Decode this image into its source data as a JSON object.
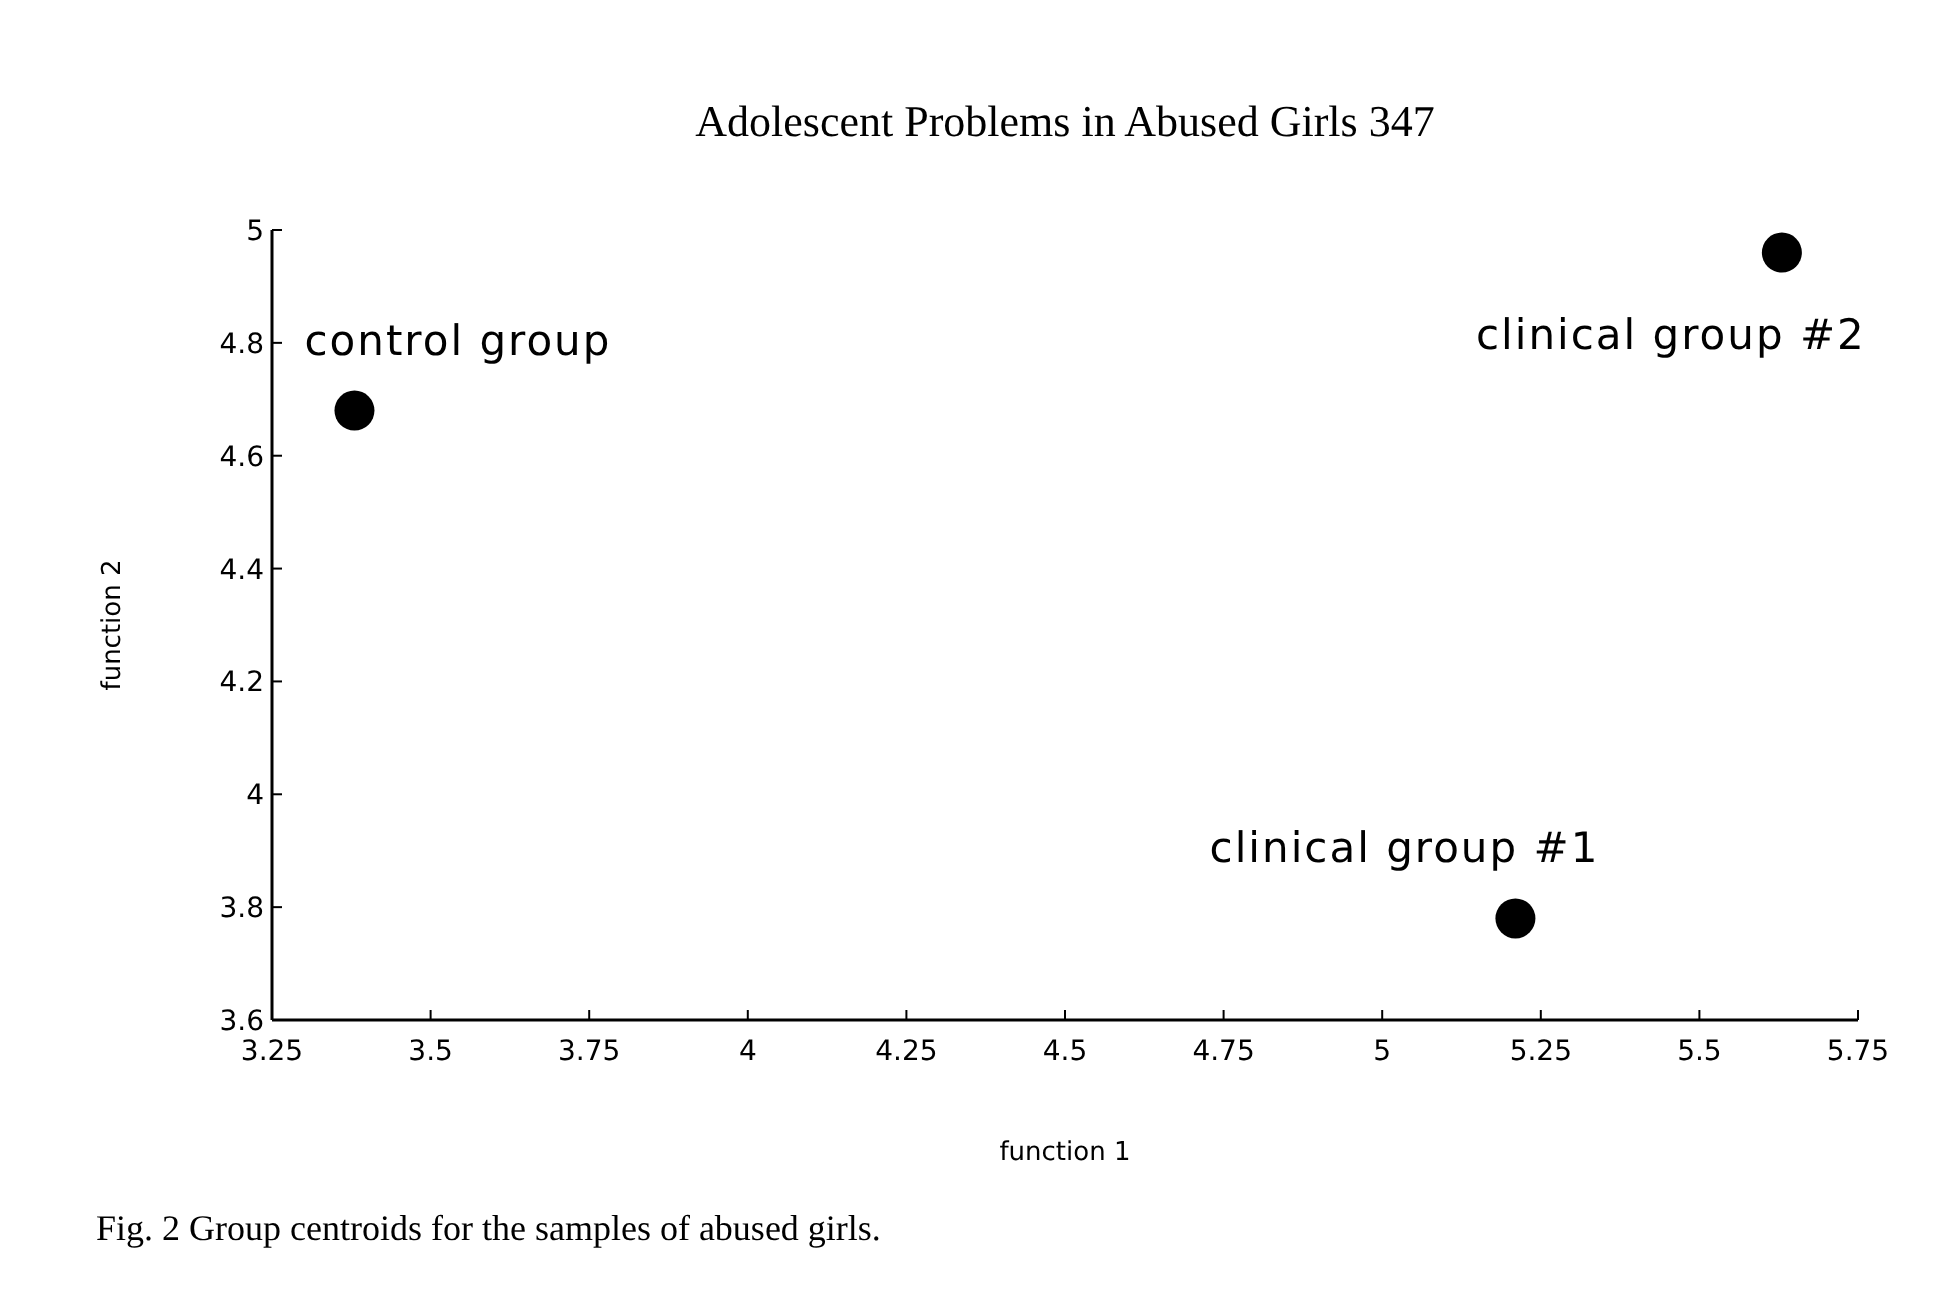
{
  "chart_data": {
    "type": "scatter",
    "title": "Adolescent Problems in Abused Girls   347",
    "xlabel": "function 1",
    "ylabel": "function 2",
    "series": [
      {
        "color": "#000000",
        "x": [
          3.38,
          5.63,
          5.21
        ],
        "values": [
          4.68,
          4.96,
          3.78
        ]
      }
    ],
    "xlim": [
      3.25,
      5.75
    ],
    "xticks": [
      3.25,
      3.5,
      3.75,
      4,
      4.25,
      4.5,
      4.75,
      5,
      5.25,
      5.5,
      5.75
    ],
    "ylim": [
      3.6,
      5
    ],
    "yticks": [
      3.6,
      3.8,
      4,
      4.2,
      4.4,
      4.6,
      4.8,
      5
    ],
    "grid": false,
    "marker": "circle",
    "annotations": [
      {
        "text": "control group",
        "x": 3.38,
        "y": 4.68
      },
      {
        "text": "clinical group #2",
        "x": 5.63,
        "y": 4.96
      },
      {
        "text": "clinical group #1",
        "x": 5.21,
        "y": 3.78
      },
      "Fig. 2 Group centroids for the samples of abused girls."
    ]
  }
}
